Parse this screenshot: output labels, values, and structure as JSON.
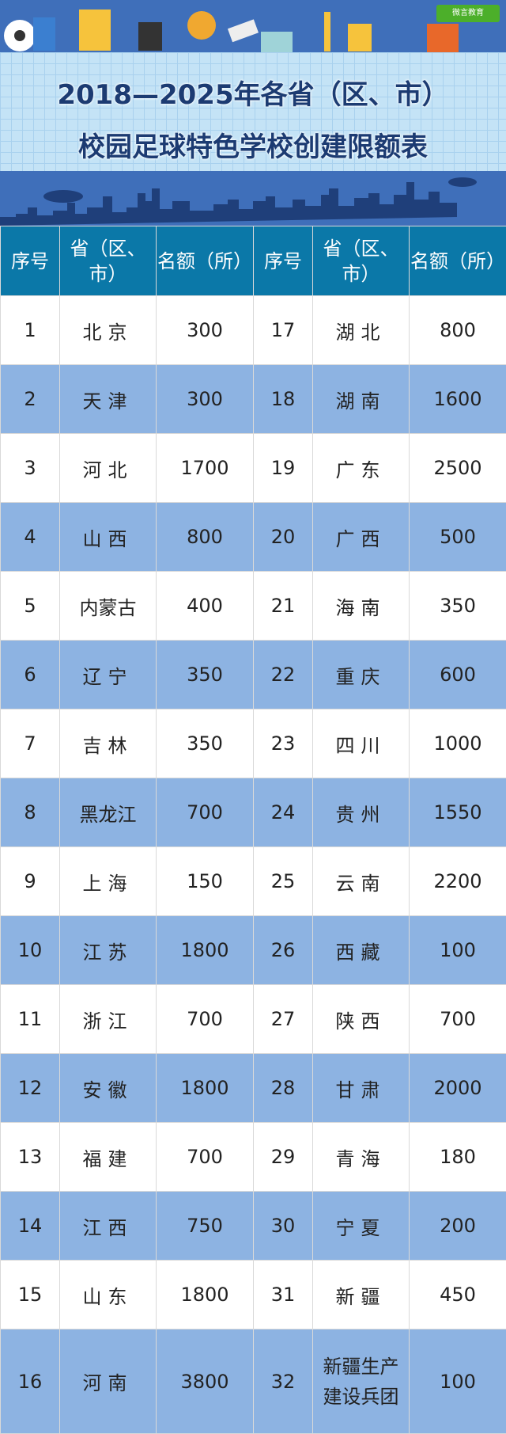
{
  "header": {
    "title_line1": "2018—2025年各省（区、市）",
    "title_line2": "校园足球特色学校创建限额表",
    "logo_text": "微言教育"
  },
  "colors": {
    "banner": "#3f6fba",
    "grid": "#c4e3f6",
    "title": "#1c3b72",
    "table_header": "#0b78a8",
    "alt_row": "#8db3e2"
  },
  "table": {
    "columns": [
      "序号",
      "省（区、市）",
      "名额（所）",
      "序号",
      "省（区、市）",
      "名额（所）"
    ],
    "rows": [
      [
        "1",
        "北京",
        "300",
        "17",
        "湖北",
        "800"
      ],
      [
        "2",
        "天津",
        "300",
        "18",
        "湖南",
        "1600"
      ],
      [
        "3",
        "河北",
        "1700",
        "19",
        "广东",
        "2500"
      ],
      [
        "4",
        "山西",
        "800",
        "20",
        "广西",
        "500"
      ],
      [
        "5",
        "内蒙古",
        "400",
        "21",
        "海南",
        "350"
      ],
      [
        "6",
        "辽宁",
        "350",
        "22",
        "重庆",
        "600"
      ],
      [
        "7",
        "吉林",
        "350",
        "23",
        "四川",
        "1000"
      ],
      [
        "8",
        "黑龙江",
        "700",
        "24",
        "贵州",
        "1550"
      ],
      [
        "9",
        "上海",
        "150",
        "25",
        "云南",
        "2200"
      ],
      [
        "10",
        "江苏",
        "1800",
        "26",
        "西藏",
        "100"
      ],
      [
        "11",
        "浙江",
        "700",
        "27",
        "陕西",
        "700"
      ],
      [
        "12",
        "安徽",
        "1800",
        "28",
        "甘肃",
        "2000"
      ],
      [
        "13",
        "福建",
        "700",
        "29",
        "青海",
        "180"
      ],
      [
        "14",
        "江西",
        "750",
        "30",
        "宁夏",
        "200"
      ],
      [
        "15",
        "山东",
        "1800",
        "31",
        "新疆",
        "450"
      ],
      [
        "16",
        "河南",
        "3800",
        "32",
        "新疆生产建设兵团",
        "100"
      ]
    ]
  }
}
